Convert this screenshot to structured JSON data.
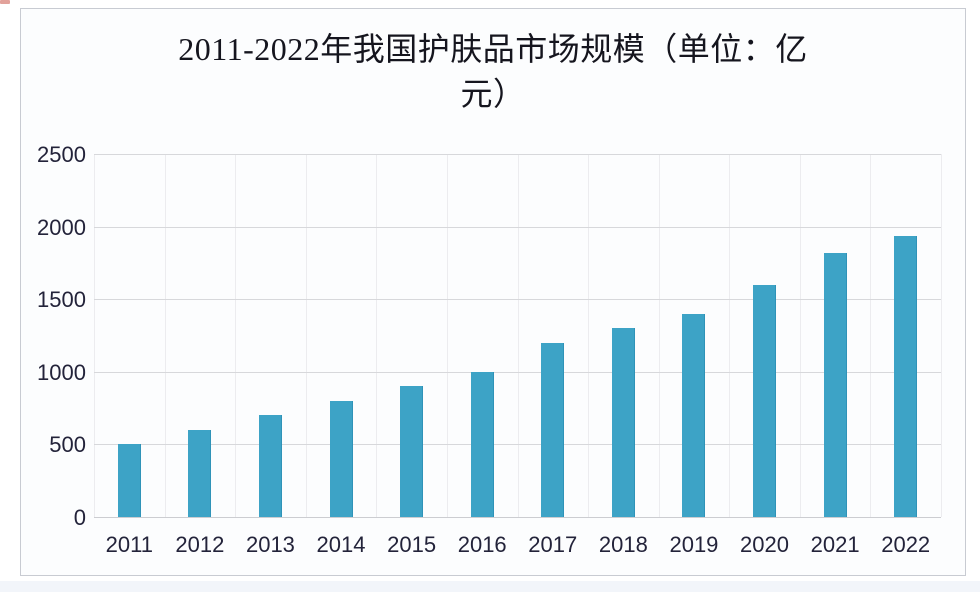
{
  "artifact": {
    "red_mark_color": "#d8837a"
  },
  "chart_data": {
    "type": "bar",
    "title_line1": "2011-2022年我国护肤品市场规模（单位：亿",
    "title_line2": "元）",
    "title_full": "2011-2022年我国护肤品市场规模（单位：亿元）",
    "unit": "亿元",
    "categories": [
      "2011",
      "2012",
      "2013",
      "2014",
      "2015",
      "2016",
      "2017",
      "2018",
      "2019",
      "2020",
      "2021",
      "2022"
    ],
    "values": [
      500,
      600,
      700,
      800,
      900,
      1000,
      1200,
      1300,
      1395,
      1600,
      1815,
      1935
    ],
    "xlabel": "",
    "ylabel": "",
    "ylim": [
      0,
      2500
    ],
    "yticks": [
      0,
      500,
      1000,
      1500,
      2000,
      2500
    ],
    "legend": "none",
    "grid": "horizontal-major-plus-faint-vertical-category-boundaries",
    "colors": {
      "bar": "#3da3c6",
      "bar_edge": "#2f93b8",
      "title": "#15151e",
      "tick_label": "#23233a",
      "hgrid": "#d7d8db",
      "zero_line": "#cccdd1",
      "vgrid": "#ececef",
      "panel_border": "#c8cbd2",
      "panel_background": "#fcfdfe"
    }
  }
}
